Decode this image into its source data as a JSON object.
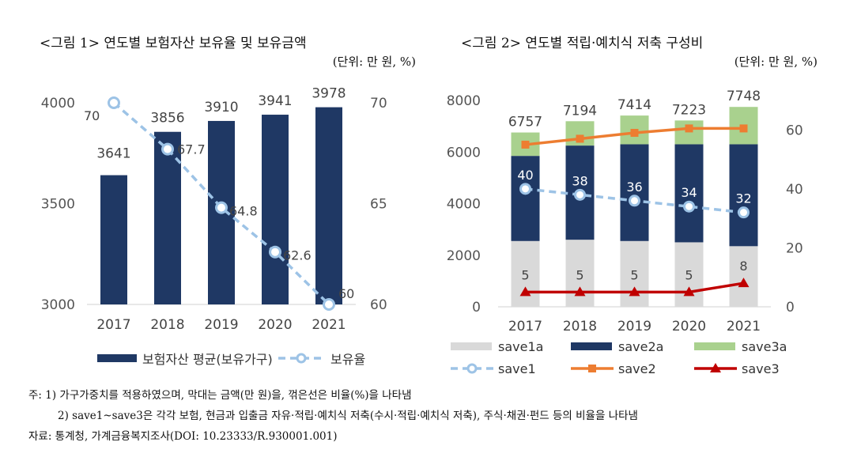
{
  "colors": {
    "navy": "#1f3864",
    "gray": "#d9d9d9",
    "green": "#a9d18e",
    "lightblue": "#9dc3e6",
    "orange": "#ed7d31",
    "red": "#c00000"
  },
  "chart_data": [
    {
      "type": "bar",
      "title": "<그림 1> 연도별 보험자산 보유율 및 보유금액",
      "unit_note": "(단위: 만 원, %)",
      "categories": [
        "2017",
        "2018",
        "2019",
        "2020",
        "2021"
      ],
      "series": [
        {
          "name": "보험자산 평균(보유가구)",
          "type": "bar",
          "axis": "left",
          "values": [
            3641,
            3856,
            3910,
            3941,
            3978
          ],
          "data_labels": [
            "3641",
            "3856",
            "3910",
            "3941",
            "3978"
          ]
        },
        {
          "name": "보유율",
          "type": "line",
          "style": "dashed",
          "axis": "right",
          "values": [
            70,
            67.7,
            64.8,
            62.6,
            60
          ],
          "data_labels": [
            "70",
            "67.7",
            "64.8",
            "62.6",
            "60"
          ]
        }
      ],
      "y_left": {
        "range": [
          3000,
          4000
        ],
        "ticks": [
          "3000",
          "3500",
          "4000"
        ]
      },
      "y_right": {
        "range": [
          60,
          70
        ],
        "ticks": [
          "60",
          "65",
          "70"
        ]
      },
      "legend_position": "bottom",
      "grid": false
    },
    {
      "type": "bar",
      "stacked": true,
      "title": "<그림 2> 연도별 적립·예치식 저축 구성비",
      "unit_note": "(단위: 만 원, %)",
      "categories": [
        "2017",
        "2018",
        "2019",
        "2020",
        "2021"
      ],
      "series": [
        {
          "name": "save1a",
          "type": "bar",
          "axis": "left",
          "values": [
            2550,
            2600,
            2550,
            2500,
            2350
          ]
        },
        {
          "name": "save2a",
          "type": "bar",
          "axis": "left",
          "values": [
            3300,
            3650,
            3750,
            3800,
            3950
          ]
        },
        {
          "name": "save3a",
          "type": "bar",
          "axis": "left",
          "values": [
            907,
            944,
            1114,
            923,
            1448
          ]
        },
        {
          "name": "save1",
          "type": "line",
          "style": "dashed",
          "axis": "right",
          "values": [
            40,
            38,
            36,
            34,
            32
          ],
          "data_labels": [
            "40",
            "38",
            "36",
            "34",
            "32"
          ]
        },
        {
          "name": "save2",
          "type": "line",
          "axis": "right",
          "values": [
            55,
            57,
            59,
            60.5,
            60.5
          ]
        },
        {
          "name": "save3",
          "type": "line",
          "axis": "right",
          "values": [
            5,
            5,
            5,
            5,
            8
          ],
          "data_labels": [
            "5",
            "5",
            "5",
            "5",
            "8"
          ]
        }
      ],
      "totals": [
        "6757",
        "7194",
        "7414",
        "7223",
        "7748"
      ],
      "y_left": {
        "range": [
          0,
          8000
        ],
        "ticks": [
          "0",
          "2000",
          "4000",
          "6000",
          "8000"
        ]
      },
      "y_right": {
        "range": [
          0,
          70
        ],
        "ticks": [
          "0",
          "20",
          "40",
          "60"
        ]
      },
      "legend_position": "bottom",
      "grid": false
    }
  ],
  "notes": {
    "note1": "주: 1) 가구가중치를 적용하였으며, 막대는 금액(만 원)을, 꺾은선은 비율(%)을 나타냄",
    "note2": "2) save1~save3은 각각 보험, 현금과 입출금 자유·적립·예치식 저축(수시·적립·예치식 저축), 주식·채권·펀드 등의 비율을 나타냄",
    "source": "자료: 통계청, 가계금융복지조사(DOI: 10.23333/R.930001.001)"
  }
}
